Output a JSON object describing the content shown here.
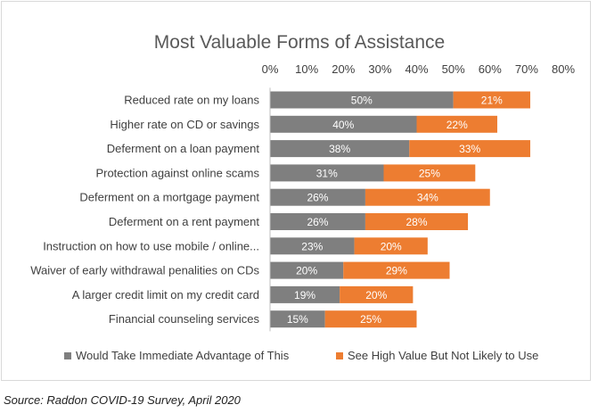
{
  "chart_data": {
    "type": "bar",
    "orientation": "horizontal",
    "stacked": true,
    "title": "Most Valuable Forms of Assistance",
    "categories": [
      "Reduced rate on my loans",
      "Higher rate on CD or savings",
      "Deferment on a loan payment",
      "Protection against online scams",
      "Deferment on a mortgage payment",
      "Deferment on a rent payment",
      "Instruction on how to use mobile / online...",
      "Waiver of early withdrawal penalities on CDs",
      "A larger credit limit on my credit card",
      "Financial counseling services"
    ],
    "series": [
      {
        "name": "Would Take Immediate Advantage of This",
        "color": "#7f7f7f",
        "values": [
          50,
          40,
          38,
          31,
          26,
          26,
          23,
          20,
          19,
          15
        ]
      },
      {
        "name": "See High Value But Not Likely to Use",
        "color": "#ed7d31",
        "values": [
          21,
          22,
          33,
          25,
          34,
          28,
          20,
          29,
          20,
          25
        ]
      }
    ],
    "xlim": [
      0,
      80
    ],
    "xticks": [
      "0%",
      "10%",
      "20%",
      "30%",
      "40%",
      "50%",
      "60%",
      "70%",
      "80%"
    ],
    "x_axis_position": "top",
    "value_suffix": "%",
    "grid": false,
    "legend_position": "bottom"
  },
  "source_note": "Source: Raddon COVID-19 Survey, April 2020"
}
